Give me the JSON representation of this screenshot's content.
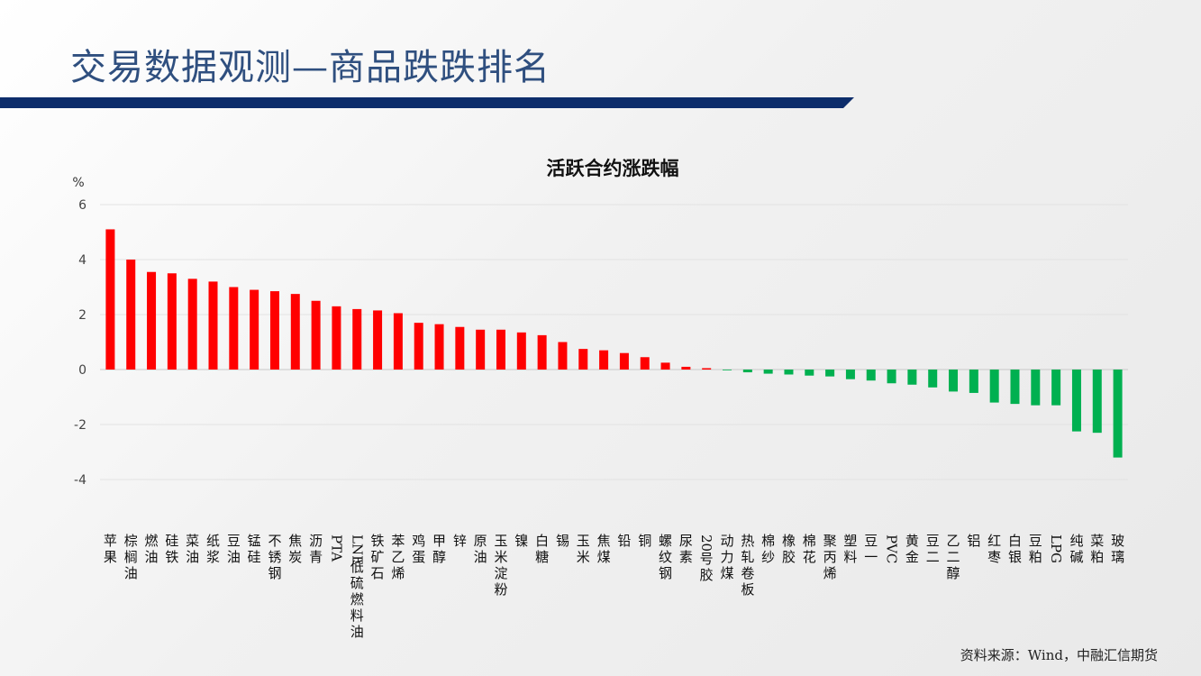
{
  "page": {
    "title": "交易数据观测—商品跌跌排名",
    "source": "资料来源：Wind，中融汇信期货"
  },
  "colors": {
    "up": "#ff0000",
    "down": "#00b050",
    "title": "#2f4f7f",
    "band": "#0d2d6b"
  },
  "chart_data": {
    "type": "bar",
    "title": "活跃合约涨跌幅",
    "unit_label": "%",
    "ylim": [
      -4,
      6
    ],
    "yticks": [
      6,
      4,
      2,
      0,
      -2,
      -4
    ],
    "grid": true,
    "legend": "none",
    "categories": [
      "苹果",
      "棕榈油",
      "燃油",
      "硅铁",
      "菜油",
      "纸浆",
      "豆油",
      "锰硅",
      "不锈钢",
      "焦炭",
      "沥青",
      "PTA",
      "LNE低硫燃料油",
      "铁矿石",
      "苯乙烯",
      "鸡蛋",
      "甲醇",
      "锌",
      "原油",
      "玉米淀粉",
      "镍",
      "白糖",
      "锡",
      "玉米",
      "焦煤",
      "铅",
      "铜",
      "螺纹钢",
      "尿素",
      "20号胶",
      "动力煤",
      "热轧卷板",
      "棉纱",
      "橡胶",
      "棉花",
      "聚丙烯",
      "塑料",
      "豆一",
      "PVC",
      "黄金",
      "豆二",
      "乙二醇",
      "铝",
      "红枣",
      "白银",
      "豆粕",
      "LPG",
      "纯碱",
      "菜粕",
      "玻璃"
    ],
    "values": [
      5.1,
      4.0,
      3.55,
      3.5,
      3.3,
      3.2,
      3.0,
      2.9,
      2.85,
      2.75,
      2.5,
      2.3,
      2.2,
      2.15,
      2.05,
      1.7,
      1.65,
      1.55,
      1.45,
      1.45,
      1.35,
      1.25,
      1.0,
      0.75,
      0.7,
      0.6,
      0.45,
      0.25,
      0.1,
      0.05,
      -0.02,
      -0.1,
      -0.15,
      -0.18,
      -0.22,
      -0.25,
      -0.35,
      -0.4,
      -0.5,
      -0.55,
      -0.65,
      -0.8,
      -0.85,
      -1.2,
      -1.25,
      -1.3,
      -1.3,
      -2.25,
      -2.3,
      -3.2
    ]
  }
}
